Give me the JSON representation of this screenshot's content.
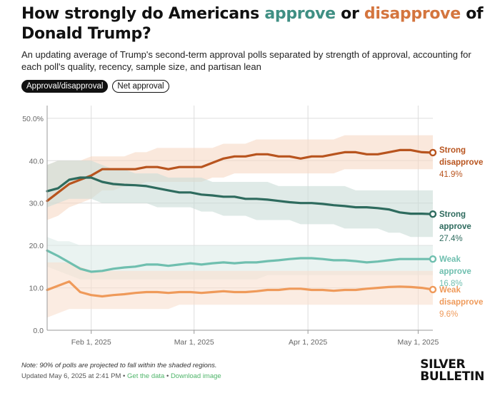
{
  "header": {
    "title_part1": "How strongly do Americans ",
    "title_approve": "approve",
    "title_part2": " or ",
    "title_disapprove": "disapprove",
    "title_part3": " of Donald Trump?",
    "subtitle": "An updating average of Trump's second-term approval polls separated by strength of approval, accounting for each poll's quality, recency, sample size, and partisan lean"
  },
  "toggles": {
    "approval_disapproval": "Approval/disapproval",
    "net_approval": "Net approval"
  },
  "footer": {
    "note": "Note: 90% of polls are projected to fall within the shaded regions.",
    "updated": "Updated May 6, 2025 at 2:41 PM",
    "separator": " • ",
    "get_data": "Get the data",
    "download_image": "Download image",
    "logo_line1": "SILVER",
    "logo_line2": "BULLETIN"
  },
  "colors": {
    "strong_disapprove": "#b8541e",
    "strong_disapprove_band": "#f6d8c4",
    "strong_approve": "#2e6b5e",
    "strong_approve_band": "#c9dcd7",
    "weak_approve": "#6fbfaf",
    "weak_approve_band": "#dcebe7",
    "weak_disapprove": "#ef9a5a",
    "weak_disapprove_band": "#f8e0cf",
    "grid": "#dddddd",
    "axis": "#999999"
  },
  "chart_data": {
    "type": "line",
    "x": [
      "2025-01-20",
      "2025-01-23",
      "2025-01-26",
      "2025-01-29",
      "2025-02-01",
      "2025-02-04",
      "2025-02-07",
      "2025-02-10",
      "2025-02-13",
      "2025-02-16",
      "2025-02-19",
      "2025-02-22",
      "2025-02-25",
      "2025-02-28",
      "2025-03-03",
      "2025-03-06",
      "2025-03-09",
      "2025-03-12",
      "2025-03-15",
      "2025-03-18",
      "2025-03-21",
      "2025-03-24",
      "2025-03-27",
      "2025-03-30",
      "2025-04-02",
      "2025-04-05",
      "2025-04-08",
      "2025-04-11",
      "2025-04-14",
      "2025-04-17",
      "2025-04-20",
      "2025-04-23",
      "2025-04-26",
      "2025-04-29",
      "2025-05-02",
      "2025-05-05"
    ],
    "x_ticks": [
      "Feb 1, 2025",
      "Mar 1, 2025",
      "Apr 1, 2025",
      "May 1, 2025"
    ],
    "x_tick_dates": [
      "2025-02-01",
      "2025-03-01",
      "2025-04-01",
      "2025-05-01"
    ],
    "y_ticks": [
      "0.0",
      "10.0",
      "20.0",
      "30.0",
      "40.0",
      "50.0%"
    ],
    "ylim": [
      0,
      53
    ],
    "grid": true,
    "series": [
      {
        "key": "strong_disapprove",
        "name": "Strong disapprove",
        "end_label_line1": "Strong",
        "end_label_line2": "disapprove",
        "end_value": "41.9%",
        "values": [
          30.5,
          32.5,
          34.5,
          35.5,
          36.5,
          38.0,
          38.0,
          38.0,
          38.0,
          38.5,
          38.5,
          38.0,
          38.5,
          38.5,
          38.5,
          39.5,
          40.5,
          41.0,
          41.0,
          41.5,
          41.5,
          41.0,
          41.0,
          40.5,
          41.0,
          41.0,
          41.5,
          42.0,
          42.0,
          41.5,
          41.5,
          42.0,
          42.5,
          42.5,
          42.0,
          41.9
        ],
        "lower": [
          26,
          27,
          29,
          30,
          31,
          33,
          33,
          34,
          34,
          35,
          35,
          35,
          35,
          35,
          35,
          36,
          36,
          37,
          37,
          37,
          37,
          37,
          37,
          37,
          37,
          37,
          37,
          38,
          38,
          38,
          38,
          38,
          38,
          38,
          38,
          38
        ],
        "upper": [
          39,
          40,
          40,
          40,
          41,
          41,
          41,
          41,
          42,
          42,
          43,
          43,
          43,
          43,
          43,
          43,
          44,
          44,
          44,
          45,
          45,
          45,
          45,
          45,
          45,
          45,
          45,
          46,
          46,
          46,
          46,
          46,
          46,
          46,
          46,
          46
        ]
      },
      {
        "key": "strong_approve",
        "name": "Strong approve",
        "end_label_line1": "Strong",
        "end_label_line2": "approve",
        "end_value": "27.4%",
        "values": [
          32.8,
          33.5,
          35.5,
          36.0,
          36.0,
          35.0,
          34.5,
          34.3,
          34.2,
          34.0,
          33.5,
          33.0,
          32.5,
          32.5,
          32.0,
          31.8,
          31.5,
          31.5,
          31.0,
          31.0,
          30.8,
          30.5,
          30.2,
          30.0,
          30.0,
          29.8,
          29.5,
          29.3,
          29.0,
          29.0,
          28.8,
          28.5,
          27.8,
          27.5,
          27.5,
          27.4
        ],
        "lower": [
          29,
          30,
          31,
          31,
          31,
          30,
          30,
          30,
          30,
          30,
          29,
          29,
          29,
          29,
          28,
          28,
          27,
          27,
          27,
          26,
          26,
          26,
          26,
          25,
          25,
          25,
          25,
          24,
          24,
          24,
          24,
          23,
          23,
          22,
          22,
          22
        ],
        "upper": [
          39,
          40,
          40,
          40,
          40,
          39,
          38,
          38,
          37,
          37,
          37,
          36,
          36,
          36,
          36,
          35,
          35,
          35,
          35,
          35,
          35,
          34,
          34,
          34,
          34,
          34,
          34,
          34,
          33,
          33,
          33,
          33,
          33,
          33,
          33,
          33
        ]
      },
      {
        "key": "weak_approve",
        "name": "Weak approve",
        "end_label_line1": "Weak",
        "end_label_line2": "approve",
        "end_value": "16.8%",
        "values": [
          18.8,
          17.5,
          16.0,
          14.5,
          13.8,
          14.0,
          14.5,
          14.8,
          15.0,
          15.5,
          15.5,
          15.2,
          15.5,
          15.8,
          15.5,
          15.8,
          16.0,
          15.8,
          16.0,
          16.0,
          16.3,
          16.5,
          16.8,
          17.0,
          17.0,
          16.8,
          16.5,
          16.5,
          16.3,
          16.0,
          16.2,
          16.5,
          16.8,
          16.8,
          16.8,
          16.8
        ],
        "lower": [
          15,
          14,
          13,
          12,
          12,
          12,
          12,
          12,
          12,
          12,
          12,
          12,
          12,
          12,
          12,
          12,
          12,
          12,
          12,
          12,
          13,
          13,
          13,
          13,
          13,
          13,
          13,
          13,
          13,
          13,
          13,
          13,
          13,
          13,
          13,
          13
        ],
        "upper": [
          22,
          21,
          21,
          20,
          20,
          20,
          20,
          20,
          20,
          20,
          20,
          20,
          20,
          20,
          20,
          20,
          20,
          20,
          20,
          20,
          20,
          20,
          20,
          20,
          20,
          20,
          20,
          20,
          20,
          20,
          20,
          20,
          20,
          20,
          20,
          20
        ]
      },
      {
        "key": "weak_disapprove",
        "name": "Weak disapprove",
        "end_label_line1": "Weak",
        "end_label_line2": "disapprove",
        "end_value": "9.6%",
        "values": [
          9.5,
          10.5,
          11.5,
          9.0,
          8.3,
          8.0,
          8.3,
          8.5,
          8.8,
          9.0,
          9.0,
          8.8,
          9.0,
          9.0,
          8.8,
          9.0,
          9.2,
          9.0,
          9.0,
          9.2,
          9.5,
          9.5,
          9.8,
          9.8,
          9.5,
          9.5,
          9.3,
          9.5,
          9.5,
          9.8,
          10.0,
          10.2,
          10.3,
          10.2,
          10.0,
          9.6
        ],
        "lower": [
          3,
          4,
          5,
          5,
          5,
          5,
          5,
          5,
          5,
          5,
          5,
          5,
          6,
          6,
          6,
          6,
          6,
          6,
          6,
          6,
          6,
          6,
          6,
          6,
          6,
          6,
          6,
          6,
          6,
          6,
          6,
          6,
          6,
          6,
          6,
          6
        ],
        "upper": [
          16,
          16,
          16,
          15,
          14,
          14,
          14,
          14,
          14,
          14,
          14,
          14,
          14,
          14,
          14,
          14,
          14,
          14,
          14,
          14,
          14,
          14,
          14,
          14,
          14,
          14,
          14,
          14,
          14,
          14,
          14,
          14,
          14,
          14,
          14,
          14
        ]
      }
    ]
  }
}
